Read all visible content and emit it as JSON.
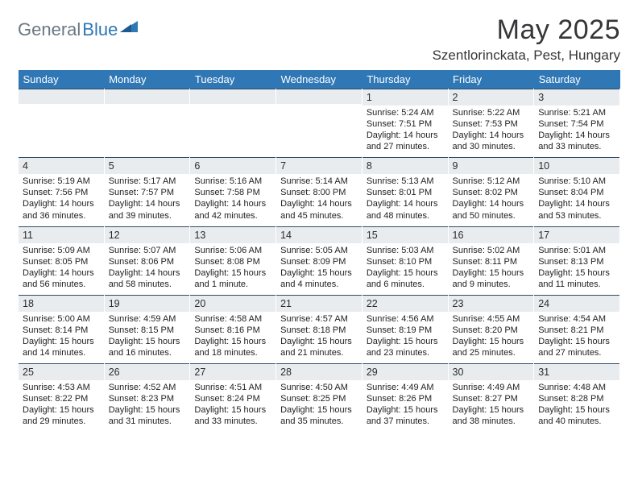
{
  "brand": {
    "part1": "General",
    "part2": "Blue"
  },
  "title": "May 2025",
  "location": "Szentlorinckata, Pest, Hungary",
  "colors": {
    "header_bg": "#2f77b5",
    "header_text": "#ffffff",
    "band_bg": "#e9ecef",
    "band_border": "#2f4b69",
    "page_bg": "#ffffff",
    "text": "#222222",
    "logo_gray": "#6b7884",
    "logo_blue": "#2f77b5"
  },
  "typography": {
    "title_fontsize": 34,
    "location_fontsize": 17,
    "header_fontsize": 13,
    "daynum_fontsize": 12.5,
    "info_fontsize": 11
  },
  "weekdays": [
    "Sunday",
    "Monday",
    "Tuesday",
    "Wednesday",
    "Thursday",
    "Friday",
    "Saturday"
  ],
  "weeks": [
    [
      null,
      null,
      null,
      null,
      {
        "n": "1",
        "sr": "Sunrise: 5:24 AM",
        "ss": "Sunset: 7:51 PM",
        "d1": "Daylight: 14 hours",
        "d2": "and 27 minutes."
      },
      {
        "n": "2",
        "sr": "Sunrise: 5:22 AM",
        "ss": "Sunset: 7:53 PM",
        "d1": "Daylight: 14 hours",
        "d2": "and 30 minutes."
      },
      {
        "n": "3",
        "sr": "Sunrise: 5:21 AM",
        "ss": "Sunset: 7:54 PM",
        "d1": "Daylight: 14 hours",
        "d2": "and 33 minutes."
      }
    ],
    [
      {
        "n": "4",
        "sr": "Sunrise: 5:19 AM",
        "ss": "Sunset: 7:56 PM",
        "d1": "Daylight: 14 hours",
        "d2": "and 36 minutes."
      },
      {
        "n": "5",
        "sr": "Sunrise: 5:17 AM",
        "ss": "Sunset: 7:57 PM",
        "d1": "Daylight: 14 hours",
        "d2": "and 39 minutes."
      },
      {
        "n": "6",
        "sr": "Sunrise: 5:16 AM",
        "ss": "Sunset: 7:58 PM",
        "d1": "Daylight: 14 hours",
        "d2": "and 42 minutes."
      },
      {
        "n": "7",
        "sr": "Sunrise: 5:14 AM",
        "ss": "Sunset: 8:00 PM",
        "d1": "Daylight: 14 hours",
        "d2": "and 45 minutes."
      },
      {
        "n": "8",
        "sr": "Sunrise: 5:13 AM",
        "ss": "Sunset: 8:01 PM",
        "d1": "Daylight: 14 hours",
        "d2": "and 48 minutes."
      },
      {
        "n": "9",
        "sr": "Sunrise: 5:12 AM",
        "ss": "Sunset: 8:02 PM",
        "d1": "Daylight: 14 hours",
        "d2": "and 50 minutes."
      },
      {
        "n": "10",
        "sr": "Sunrise: 5:10 AM",
        "ss": "Sunset: 8:04 PM",
        "d1": "Daylight: 14 hours",
        "d2": "and 53 minutes."
      }
    ],
    [
      {
        "n": "11",
        "sr": "Sunrise: 5:09 AM",
        "ss": "Sunset: 8:05 PM",
        "d1": "Daylight: 14 hours",
        "d2": "and 56 minutes."
      },
      {
        "n": "12",
        "sr": "Sunrise: 5:07 AM",
        "ss": "Sunset: 8:06 PM",
        "d1": "Daylight: 14 hours",
        "d2": "and 58 minutes."
      },
      {
        "n": "13",
        "sr": "Sunrise: 5:06 AM",
        "ss": "Sunset: 8:08 PM",
        "d1": "Daylight: 15 hours",
        "d2": "and 1 minute."
      },
      {
        "n": "14",
        "sr": "Sunrise: 5:05 AM",
        "ss": "Sunset: 8:09 PM",
        "d1": "Daylight: 15 hours",
        "d2": "and 4 minutes."
      },
      {
        "n": "15",
        "sr": "Sunrise: 5:03 AM",
        "ss": "Sunset: 8:10 PM",
        "d1": "Daylight: 15 hours",
        "d2": "and 6 minutes."
      },
      {
        "n": "16",
        "sr": "Sunrise: 5:02 AM",
        "ss": "Sunset: 8:11 PM",
        "d1": "Daylight: 15 hours",
        "d2": "and 9 minutes."
      },
      {
        "n": "17",
        "sr": "Sunrise: 5:01 AM",
        "ss": "Sunset: 8:13 PM",
        "d1": "Daylight: 15 hours",
        "d2": "and 11 minutes."
      }
    ],
    [
      {
        "n": "18",
        "sr": "Sunrise: 5:00 AM",
        "ss": "Sunset: 8:14 PM",
        "d1": "Daylight: 15 hours",
        "d2": "and 14 minutes."
      },
      {
        "n": "19",
        "sr": "Sunrise: 4:59 AM",
        "ss": "Sunset: 8:15 PM",
        "d1": "Daylight: 15 hours",
        "d2": "and 16 minutes."
      },
      {
        "n": "20",
        "sr": "Sunrise: 4:58 AM",
        "ss": "Sunset: 8:16 PM",
        "d1": "Daylight: 15 hours",
        "d2": "and 18 minutes."
      },
      {
        "n": "21",
        "sr": "Sunrise: 4:57 AM",
        "ss": "Sunset: 8:18 PM",
        "d1": "Daylight: 15 hours",
        "d2": "and 21 minutes."
      },
      {
        "n": "22",
        "sr": "Sunrise: 4:56 AM",
        "ss": "Sunset: 8:19 PM",
        "d1": "Daylight: 15 hours",
        "d2": "and 23 minutes."
      },
      {
        "n": "23",
        "sr": "Sunrise: 4:55 AM",
        "ss": "Sunset: 8:20 PM",
        "d1": "Daylight: 15 hours",
        "d2": "and 25 minutes."
      },
      {
        "n": "24",
        "sr": "Sunrise: 4:54 AM",
        "ss": "Sunset: 8:21 PM",
        "d1": "Daylight: 15 hours",
        "d2": "and 27 minutes."
      }
    ],
    [
      {
        "n": "25",
        "sr": "Sunrise: 4:53 AM",
        "ss": "Sunset: 8:22 PM",
        "d1": "Daylight: 15 hours",
        "d2": "and 29 minutes."
      },
      {
        "n": "26",
        "sr": "Sunrise: 4:52 AM",
        "ss": "Sunset: 8:23 PM",
        "d1": "Daylight: 15 hours",
        "d2": "and 31 minutes."
      },
      {
        "n": "27",
        "sr": "Sunrise: 4:51 AM",
        "ss": "Sunset: 8:24 PM",
        "d1": "Daylight: 15 hours",
        "d2": "and 33 minutes."
      },
      {
        "n": "28",
        "sr": "Sunrise: 4:50 AM",
        "ss": "Sunset: 8:25 PM",
        "d1": "Daylight: 15 hours",
        "d2": "and 35 minutes."
      },
      {
        "n": "29",
        "sr": "Sunrise: 4:49 AM",
        "ss": "Sunset: 8:26 PM",
        "d1": "Daylight: 15 hours",
        "d2": "and 37 minutes."
      },
      {
        "n": "30",
        "sr": "Sunrise: 4:49 AM",
        "ss": "Sunset: 8:27 PM",
        "d1": "Daylight: 15 hours",
        "d2": "and 38 minutes."
      },
      {
        "n": "31",
        "sr": "Sunrise: 4:48 AM",
        "ss": "Sunset: 8:28 PM",
        "d1": "Daylight: 15 hours",
        "d2": "and 40 minutes."
      }
    ]
  ]
}
